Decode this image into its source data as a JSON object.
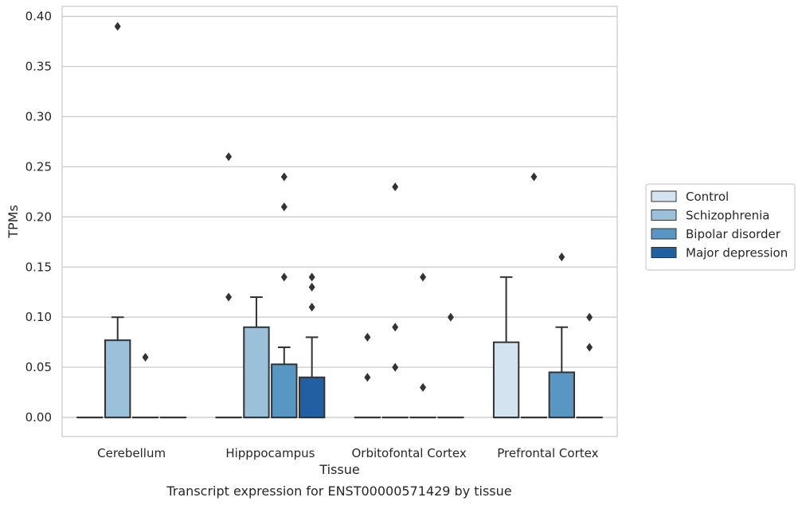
{
  "chart_data": {
    "type": "box",
    "xlabel": "Tissue",
    "ylabel": "TPMs",
    "caption": "Transcript expression for ENST00000571429 by tissue",
    "categories": [
      "Cerebellum",
      "Hipppocampus",
      "Orbitofontal Cortex",
      "Prefrontal Cortex"
    ],
    "ylim": [
      -0.019,
      0.41
    ],
    "yticks": [
      0.0,
      0.05,
      0.1,
      0.15,
      0.2,
      0.25,
      0.3,
      0.35,
      0.4
    ],
    "ytick_labels": [
      "0.00",
      "0.05",
      "0.10",
      "0.15",
      "0.20",
      "0.25",
      "0.30",
      "0.35",
      "0.40"
    ],
    "grid": true,
    "legend_position": "right",
    "series": [
      {
        "name": "Control",
        "color": "#d3e3f0",
        "boxes": [
          {
            "q1": 0,
            "median": 0,
            "q3": 0,
            "whisker_low": 0,
            "whisker_high": 0,
            "outliers": []
          },
          {
            "q1": 0,
            "median": 0,
            "q3": 0,
            "whisker_low": 0,
            "whisker_high": 0,
            "outliers": [
              0.12,
              0.26
            ]
          },
          {
            "q1": 0,
            "median": 0,
            "q3": 0,
            "whisker_low": 0,
            "whisker_high": 0,
            "outliers": [
              0.04,
              0.08
            ]
          },
          {
            "q1": 0,
            "median": 0,
            "q3": 0.075,
            "whisker_low": 0,
            "whisker_high": 0.14,
            "outliers": []
          }
        ]
      },
      {
        "name": "Schizophrenia",
        "color": "#9ac0da",
        "boxes": [
          {
            "q1": 0,
            "median": 0,
            "q3": 0.077,
            "whisker_low": 0,
            "whisker_high": 0.1,
            "outliers": [
              0.39
            ]
          },
          {
            "q1": 0,
            "median": 0,
            "q3": 0.09,
            "whisker_low": 0,
            "whisker_high": 0.12,
            "outliers": []
          },
          {
            "q1": 0,
            "median": 0,
            "q3": 0,
            "whisker_low": 0,
            "whisker_high": 0,
            "outliers": [
              0.05,
              0.09,
              0.23
            ]
          },
          {
            "q1": 0,
            "median": 0,
            "q3": 0,
            "whisker_low": 0,
            "whisker_high": 0,
            "outliers": [
              0.24
            ]
          }
        ]
      },
      {
        "name": "Bipolar disorder",
        "color": "#5896c3",
        "boxes": [
          {
            "q1": 0,
            "median": 0,
            "q3": 0,
            "whisker_low": 0,
            "whisker_high": 0,
            "outliers": [
              0.06
            ]
          },
          {
            "q1": 0,
            "median": 0,
            "q3": 0.053,
            "whisker_low": 0,
            "whisker_high": 0.07,
            "outliers": [
              0.14,
              0.21,
              0.24
            ]
          },
          {
            "q1": 0,
            "median": 0,
            "q3": 0,
            "whisker_low": 0,
            "whisker_high": 0,
            "outliers": [
              0.03,
              0.14
            ]
          },
          {
            "q1": 0,
            "median": 0,
            "q3": 0.045,
            "whisker_low": 0,
            "whisker_high": 0.09,
            "outliers": [
              0.16
            ]
          }
        ]
      },
      {
        "name": "Major depression",
        "color": "#2060a2",
        "boxes": [
          {
            "q1": 0,
            "median": 0,
            "q3": 0,
            "whisker_low": 0,
            "whisker_high": 0,
            "outliers": []
          },
          {
            "q1": 0,
            "median": 0,
            "q3": 0.04,
            "whisker_low": 0,
            "whisker_high": 0.08,
            "outliers": [
              0.11,
              0.13,
              0.14
            ]
          },
          {
            "q1": 0,
            "median": 0,
            "q3": 0,
            "whisker_low": 0,
            "whisker_high": 0,
            "outliers": [
              0.1
            ]
          },
          {
            "q1": 0,
            "median": 0,
            "q3": 0,
            "whisker_low": 0,
            "whisker_high": 0,
            "outliers": [
              0.07,
              0.1
            ]
          }
        ]
      }
    ]
  }
}
